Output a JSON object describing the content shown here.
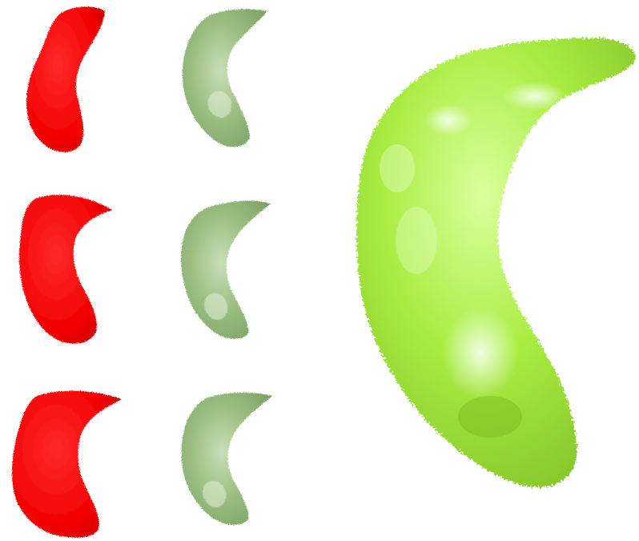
{
  "scene": {
    "description_visible_text": "",
    "colors": {
      "background": "#ffffff",
      "red_shape": "#ff0000",
      "red_shade": "#cc0000",
      "olive_shape": "#8fb673",
      "olive_light": "#c8dcb4",
      "olive_shade": "#6f9657",
      "lime_shape": "#a6ec3a",
      "lime_light": "#e6ffc8",
      "lime_shade": "#7fc21f"
    },
    "panels": {
      "red_column_count": 3,
      "olive_column_count": 3,
      "large_shape_count": 1
    }
  }
}
